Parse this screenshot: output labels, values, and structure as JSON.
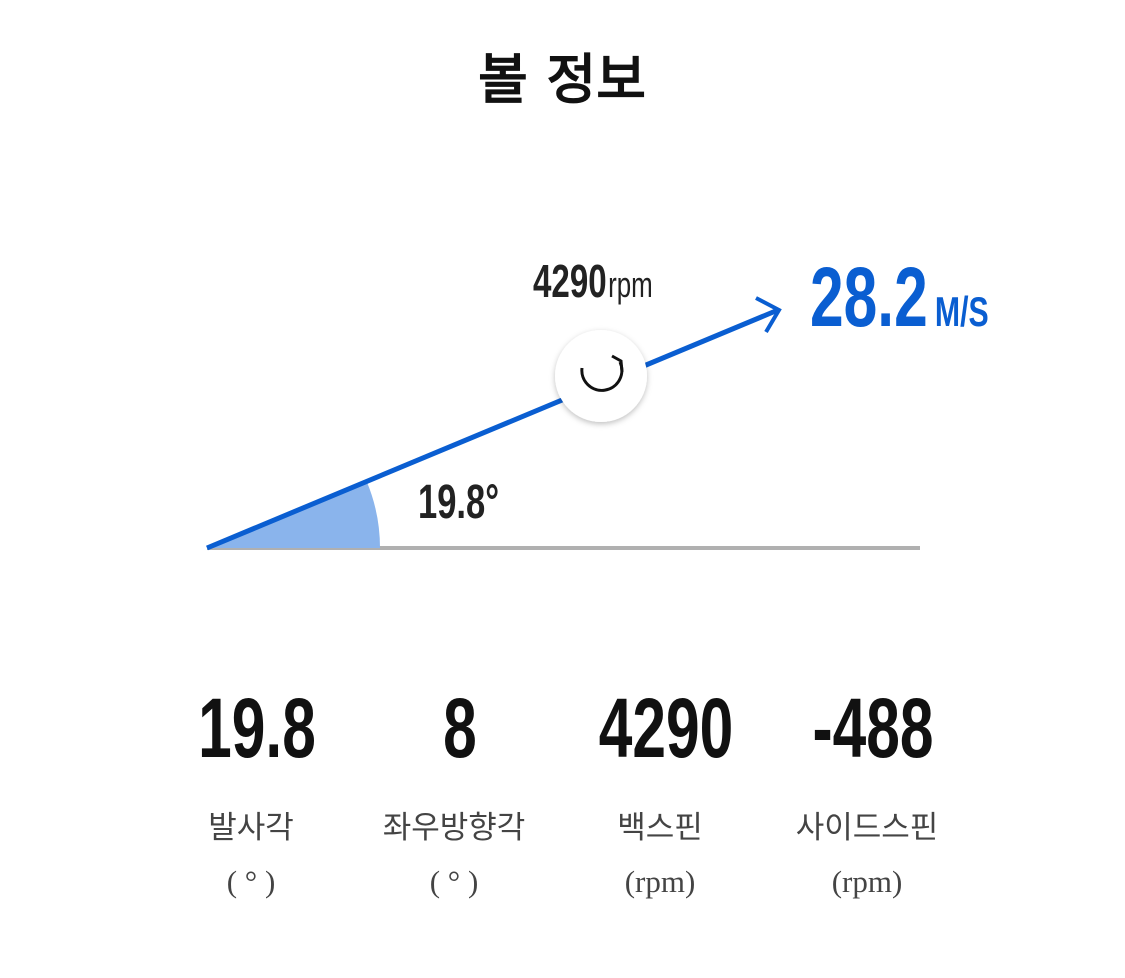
{
  "header": {
    "title": "볼 정보"
  },
  "diagram": {
    "spin": "4290",
    "spin_unit": "rpm",
    "speed": "28.2",
    "speed_unit": "M/S",
    "angle": "19.8°"
  },
  "stats": [
    {
      "value": "19.8",
      "label": "발사각",
      "unit": "( ° )"
    },
    {
      "value": "8",
      "label": "좌우방향각",
      "unit": "( ° )"
    },
    {
      "value": "4290",
      "label": "백스핀",
      "unit": "(rpm)"
    },
    {
      "value": "-488",
      "label": "사이드스핀",
      "unit": "(rpm)"
    }
  ]
}
